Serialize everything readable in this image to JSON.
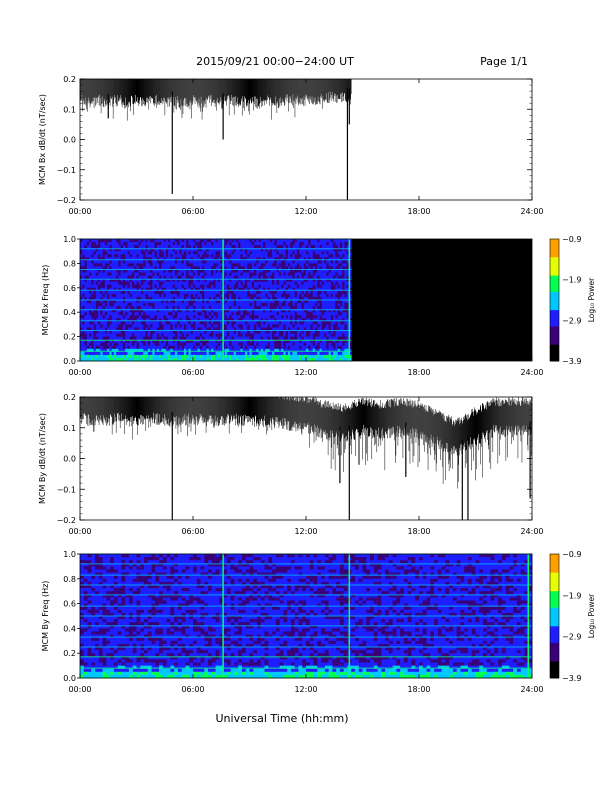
{
  "header": {
    "title": "2015/09/21  00:00−24:00 UT",
    "page": "Page 1/1"
  },
  "footer": {
    "xlabel": "Universal Time (hh:mm)"
  },
  "colors": {
    "trace": "#000000",
    "spectrogram_background": "#000000",
    "colormap": [
      "#000000",
      "#3a0078",
      "#1e1eff",
      "#00c8ff",
      "#00ff50",
      "#e6ff00",
      "#ffa000",
      "#ff0000"
    ]
  },
  "chart_data": [
    {
      "type": "line",
      "id": "bx-ts",
      "ylabel": "MCM Bx dB/dt (nT/sec)",
      "xlim": [
        0,
        24
      ],
      "ylim": [
        -0.2,
        0.2
      ],
      "x_ticks": [
        "00:00",
        "06:00",
        "12:00",
        "18:00",
        "24:00"
      ],
      "y_ticks": [
        "−0.2",
        "−0.1",
        "0.0",
        "0.1",
        "0.2"
      ],
      "data_end_hour": 14.4,
      "series": [
        {
          "values_description_points": [
            [
              0.0,
              0.17
            ],
            [
              0.3,
              0.16
            ],
            [
              0.6,
              0.15
            ],
            [
              1.0,
              0.16
            ],
            [
              1.5,
              0.15
            ],
            [
              2.0,
              0.16
            ],
            [
              2.5,
              0.15
            ],
            [
              3.0,
              0.16
            ],
            [
              3.5,
              0.15
            ],
            [
              4.0,
              0.16
            ],
            [
              4.5,
              0.15
            ],
            [
              5.0,
              0.16
            ],
            [
              5.5,
              0.15
            ],
            [
              6.0,
              0.16
            ],
            [
              6.5,
              0.15
            ],
            [
              7.0,
              0.16
            ],
            [
              7.5,
              0.15
            ],
            [
              8.0,
              0.16
            ],
            [
              8.5,
              0.15
            ],
            [
              9.0,
              0.16
            ],
            [
              9.5,
              0.15
            ],
            [
              10.0,
              0.16
            ],
            [
              10.5,
              0.15
            ],
            [
              11.0,
              0.16
            ],
            [
              11.5,
              0.16
            ],
            [
              12.0,
              0.16
            ],
            [
              12.5,
              0.16
            ],
            [
              13.0,
              0.17
            ],
            [
              13.5,
              0.17
            ],
            [
              14.0,
              0.17
            ],
            [
              14.4,
              0.17
            ]
          ],
          "spikes": [
            [
              4.9,
              -0.18
            ],
            [
              7.6,
              0.0
            ],
            [
              14.2,
              -0.2
            ],
            [
              14.3,
              0.05
            ],
            [
              1.5,
              0.07
            ]
          ]
        }
      ]
    },
    {
      "type": "heatmap",
      "id": "bx-spec",
      "ylabel": "MCM Bx Freq (Hz)",
      "xlim": [
        0,
        24
      ],
      "ylim": [
        0,
        1
      ],
      "x_ticks": [
        "00:00",
        "06:00",
        "12:00",
        "18:00",
        "24:00"
      ],
      "y_ticks": [
        "0.0",
        "0.2",
        "0.4",
        "0.6",
        "0.8",
        "1.0"
      ],
      "colorbar_label": "Log₁₀ Power",
      "colorbar_ticks": [
        "−0.9",
        "−1.9",
        "−2.9",
        "−3.9"
      ],
      "data_end_hour": 14.4,
      "harmonic_lines_hz": [
        0.08,
        0.17,
        0.25,
        0.33,
        0.42,
        0.5,
        0.58,
        0.67,
        0.75,
        0.83,
        0.92,
        1.0
      ],
      "bright_vertical_hours": [
        7.6,
        14.3
      ]
    },
    {
      "type": "line",
      "id": "by-ts",
      "ylabel": "MCM By dB/dt (nT/sec)",
      "xlim": [
        0,
        24
      ],
      "ylim": [
        -0.2,
        0.2
      ],
      "x_ticks": [
        "00:00",
        "06:00",
        "12:00",
        "18:00",
        "24:00"
      ],
      "y_ticks": [
        "−0.2",
        "−0.1",
        "0.0",
        "0.1",
        "0.2"
      ],
      "data_end_hour": 24,
      "series": [
        {
          "values_description_points": [
            [
              0.0,
              0.16
            ],
            [
              1.0,
              0.15
            ],
            [
              2.0,
              0.16
            ],
            [
              3.0,
              0.15
            ],
            [
              4.0,
              0.16
            ],
            [
              5.0,
              0.15
            ],
            [
              6.0,
              0.16
            ],
            [
              7.0,
              0.15
            ],
            [
              8.0,
              0.16
            ],
            [
              9.0,
              0.15
            ],
            [
              10.0,
              0.15
            ],
            [
              11.0,
              0.14
            ],
            [
              12.0,
              0.13
            ],
            [
              13.0,
              0.11
            ],
            [
              14.0,
              0.1
            ],
            [
              15.0,
              0.12
            ],
            [
              16.0,
              0.11
            ],
            [
              17.0,
              0.12
            ],
            [
              18.0,
              0.11
            ],
            [
              19.0,
              0.08
            ],
            [
              20.0,
              0.05
            ],
            [
              21.0,
              0.09
            ],
            [
              22.0,
              0.12
            ],
            [
              23.0,
              0.12
            ],
            [
              24.0,
              0.12
            ]
          ],
          "spikes": [
            [
              4.9,
              -0.2
            ],
            [
              14.3,
              -0.2
            ],
            [
              20.3,
              -0.2
            ],
            [
              20.6,
              -0.2
            ],
            [
              13.8,
              -0.08
            ],
            [
              23.9,
              -0.13
            ],
            [
              17.3,
              -0.06
            ]
          ]
        }
      ]
    },
    {
      "type": "heatmap",
      "id": "by-spec",
      "ylabel": "MCM By Freq (Hz)",
      "xlim": [
        0,
        24
      ],
      "ylim": [
        0,
        1
      ],
      "x_ticks": [
        "00:00",
        "06:00",
        "12:00",
        "18:00",
        "24:00"
      ],
      "y_ticks": [
        "0.0",
        "0.2",
        "0.4",
        "0.6",
        "0.8",
        "1.0"
      ],
      "colorbar_label": "Log₁₀ Power",
      "colorbar_ticks": [
        "−0.9",
        "−1.9",
        "−2.9",
        "−3.9"
      ],
      "data_end_hour": 24,
      "harmonic_lines_hz": [
        0.08,
        0.17,
        0.25,
        0.33,
        0.42,
        0.5,
        0.58,
        0.67,
        0.75,
        0.83,
        0.92,
        1.0
      ],
      "bright_vertical_hours": [
        7.6,
        14.3,
        23.8
      ]
    }
  ]
}
